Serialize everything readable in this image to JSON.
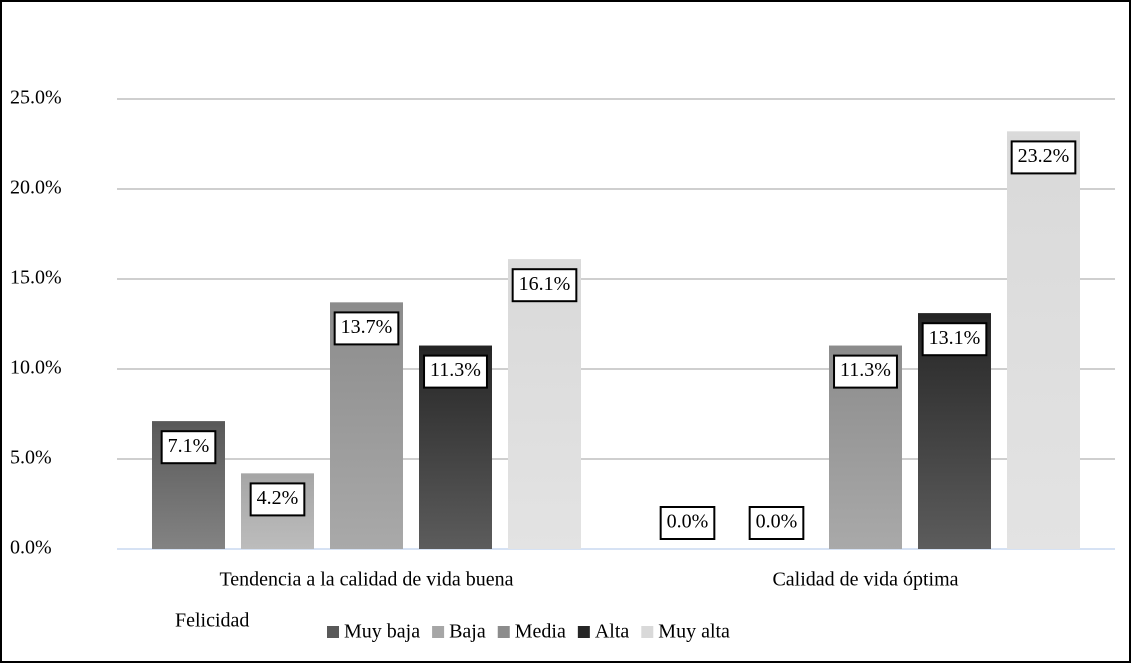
{
  "chart_data": {
    "type": "bar",
    "categories": [
      "Tendencia a la calidad de vida buena",
      "Calidad de vida óptima"
    ],
    "legend_title": "Felicidad",
    "series": [
      {
        "name": "Muy baja",
        "color": "#595959",
        "values": [
          7.1,
          0.0
        ],
        "value_labels": [
          "7.1%",
          "0.0%"
        ]
      },
      {
        "name": "Baja",
        "color": "#a6a6a6",
        "values": [
          4.2,
          0.0
        ],
        "value_labels": [
          "4.2%",
          "0.0%"
        ]
      },
      {
        "name": "Media",
        "color": "#8c8c8c",
        "values": [
          13.7,
          11.3
        ],
        "value_labels": [
          "13.7%",
          "11.3%"
        ]
      },
      {
        "name": "Alta",
        "color": "#262626",
        "values": [
          11.3,
          13.1
        ],
        "value_labels": [
          "11.3%",
          "13.1%"
        ]
      },
      {
        "name": "Muy alta",
        "color": "#d9d9d9",
        "values": [
          16.1,
          23.2
        ],
        "value_labels": [
          "16.1%",
          "23.2%"
        ]
      }
    ],
    "ylim": [
      0,
      25
    ],
    "yticks": [
      {
        "value": 0,
        "label": "0.0%"
      },
      {
        "value": 5,
        "label": "5.0%"
      },
      {
        "value": 10,
        "label": "10.0%"
      },
      {
        "value": 15,
        "label": "15.0%"
      },
      {
        "value": 20,
        "label": "20.0%"
      },
      {
        "value": 25,
        "label": "25.0%"
      }
    ],
    "grid": true,
    "legend": "bottom"
  }
}
